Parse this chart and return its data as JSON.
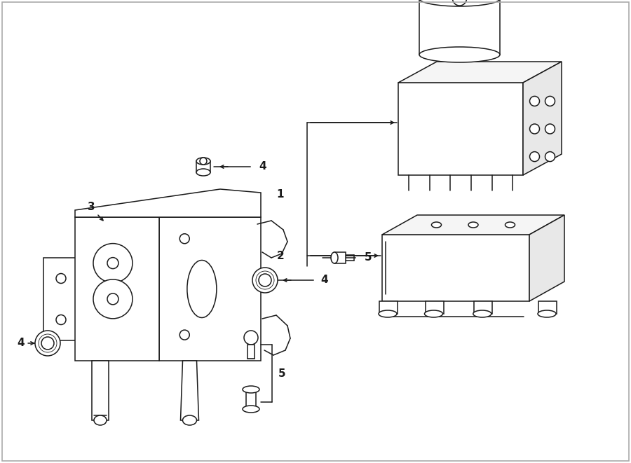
{
  "bg_color": "#ffffff",
  "line_color": "#1a1a1a",
  "fig_width": 9.0,
  "fig_height": 6.61,
  "dpi": 100,
  "border_color": "#aaaaaa",
  "label_fontsize": 11,
  "small_fontsize": 10
}
